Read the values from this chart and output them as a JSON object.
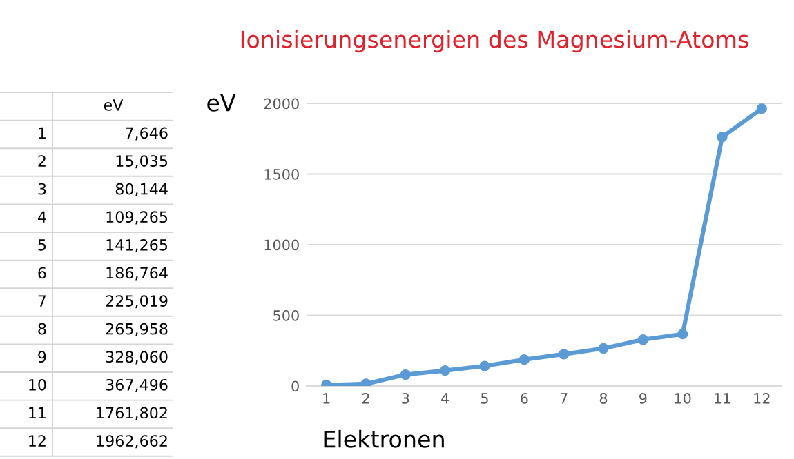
{
  "chart_data": {
    "type": "line",
    "title": "Ionisierungsenergien des Magnesium-Atoms",
    "xlabel": "Elektronen",
    "ylabel": "eV",
    "categories": [
      "1",
      "2",
      "3",
      "4",
      "5",
      "6",
      "7",
      "8",
      "9",
      "10",
      "11",
      "12"
    ],
    "series": [
      {
        "color": "#5b9bd5",
        "values": [
          7.646,
          15.035,
          80.144,
          109.265,
          141.265,
          186.764,
          225.019,
          265.958,
          328.06,
          367.496,
          1761.802,
          1962.662
        ]
      }
    ],
    "annotations": [
      "7,646",
      "15,035",
      "80,144",
      "109,265",
      "141,265",
      "186,764",
      "225,019",
      "265,958",
      "328,060",
      "367,496",
      "1761,802",
      "1962,662"
    ],
    "ylim": [
      0,
      2000
    ],
    "yticks": [
      0,
      500,
      1000,
      1500,
      2000
    ],
    "grid": "y",
    "legend": false,
    "marker": "circle",
    "line_style": "solid"
  }
}
